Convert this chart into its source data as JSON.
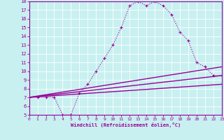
{
  "xlabel": "Windchill (Refroidissement éolien,°C)",
  "xlim": [
    0,
    23
  ],
  "ylim": [
    5,
    18
  ],
  "xticks": [
    0,
    1,
    2,
    3,
    4,
    5,
    6,
    7,
    8,
    9,
    10,
    11,
    12,
    13,
    14,
    15,
    16,
    17,
    18,
    19,
    20,
    21,
    22,
    23
  ],
  "yticks": [
    5,
    6,
    7,
    8,
    9,
    10,
    11,
    12,
    13,
    14,
    15,
    16,
    17,
    18
  ],
  "bg_color": "#c8f0f0",
  "line_color": "#990099",
  "grid_color": "#ffffff",
  "curve1_x": [
    0,
    1,
    2,
    3,
    4,
    5,
    6,
    7,
    8,
    9,
    10,
    11,
    12,
    13,
    14,
    15,
    16,
    17,
    18,
    19,
    20,
    21,
    22,
    23
  ],
  "curve1_y": [
    7.0,
    7.0,
    7.0,
    7.0,
    5.0,
    5.0,
    7.5,
    8.5,
    10.0,
    11.5,
    13.0,
    15.0,
    17.5,
    18.0,
    17.5,
    18.0,
    17.5,
    16.5,
    14.5,
    13.5,
    11.0,
    10.5,
    9.5,
    9.5
  ],
  "line1_x": [
    0,
    23
  ],
  "line1_y": [
    7.0,
    8.5
  ],
  "line2_x": [
    0,
    23
  ],
  "line2_y": [
    7.0,
    9.5
  ],
  "line3_x": [
    0,
    23
  ],
  "line3_y": [
    7.0,
    10.5
  ]
}
